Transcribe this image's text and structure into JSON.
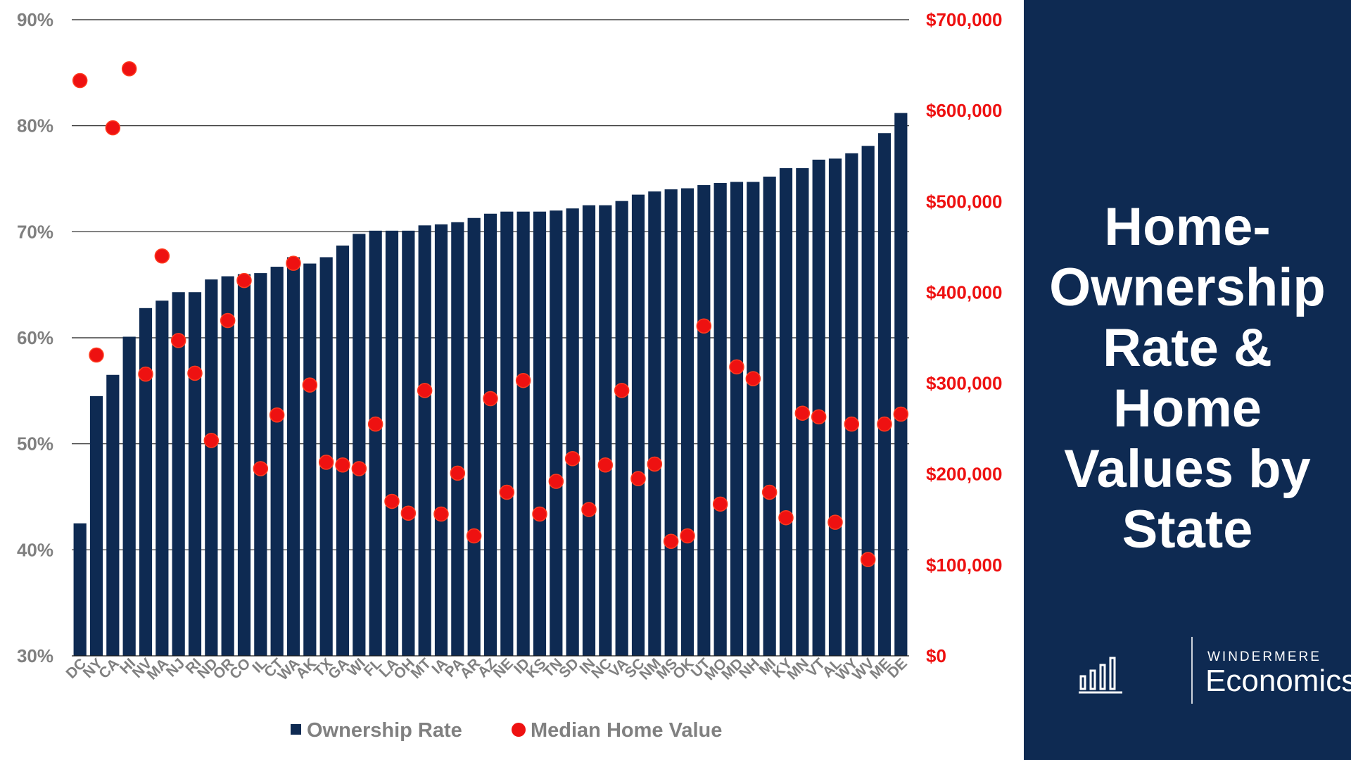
{
  "chart_data": {
    "type": "bar+scatter",
    "categories": [
      "DC",
      "NY",
      "CA",
      "HI",
      "NV",
      "MA",
      "NJ",
      "RI",
      "ND",
      "OR",
      "CO",
      "IL",
      "CT",
      "WA",
      "AK",
      "TX",
      "GA",
      "WI",
      "FL",
      "LA",
      "OH",
      "MT",
      "IA",
      "PA",
      "AR",
      "AZ",
      "NE",
      "ID",
      "KS",
      "TN",
      "SD",
      "IN",
      "NC",
      "VA",
      "SC",
      "NM",
      "MS",
      "OK",
      "UT",
      "MO",
      "MD",
      "NH",
      "MI",
      "KY",
      "MN",
      "VT",
      "AL",
      "WY",
      "WV",
      "ME",
      "DE"
    ],
    "series": [
      {
        "name": "Ownership Rate",
        "type": "bar",
        "axis": "left",
        "color": "#0e2a52",
        "values": [
          42.5,
          54.5,
          56.5,
          60.1,
          62.8,
          63.5,
          64.3,
          64.3,
          65.5,
          65.8,
          66.0,
          66.1,
          66.7,
          67.6,
          67.0,
          67.6,
          68.7,
          69.8,
          70.1,
          70.1,
          70.1,
          70.6,
          70.7,
          70.9,
          71.3,
          71.7,
          71.9,
          71.9,
          71.9,
          72.0,
          72.2,
          72.5,
          72.5,
          72.9,
          73.5,
          73.8,
          74.0,
          74.1,
          74.4,
          74.6,
          74.7,
          74.7,
          75.2,
          76.0,
          76.0,
          76.8,
          76.9,
          77.4,
          78.1,
          79.3,
          81.2
        ]
      },
      {
        "name": "Median Home Value",
        "type": "scatter",
        "axis": "right",
        "color": "#ee1111",
        "values": [
          633000,
          331000,
          581000,
          646000,
          310000,
          440000,
          347000,
          311000,
          237000,
          369000,
          413000,
          206000,
          265000,
          432000,
          298000,
          213000,
          210000,
          206000,
          255000,
          170000,
          157000,
          292000,
          156000,
          201000,
          132000,
          283000,
          180000,
          303000,
          156000,
          192000,
          217000,
          161000,
          210000,
          292000,
          195000,
          211000,
          126000,
          132000,
          363000,
          167000,
          318000,
          305000,
          180000,
          152000,
          267000,
          263000,
          147000,
          255000,
          106000,
          255000,
          266000
        ]
      }
    ],
    "y_left": {
      "min": 30,
      "max": 90,
      "step": 10,
      "tick_labels": [
        "30%",
        "40%",
        "50%",
        "60%",
        "70%",
        "80%",
        "90%"
      ]
    },
    "y_right": {
      "min": 0,
      "max": 700000,
      "step": 100000,
      "tick_labels": [
        "$0",
        "$100,000",
        "$200,000",
        "$300,000",
        "$400,000",
        "$500,000",
        "$600,000",
        "$700,000"
      ],
      "color": "#ee1111"
    },
    "grid": true,
    "legend_position": "bottom"
  },
  "legend": {
    "bar_label": "Ownership Rate",
    "dot_label": "Median Home Value"
  },
  "panel": {
    "title_lines": [
      "Home-",
      "Ownership",
      "Rate &",
      "Home",
      "Values by",
      "State"
    ],
    "brand_small": "WINDERMERE",
    "brand_big": "Economics",
    "bg_color": "#0e2a52"
  }
}
